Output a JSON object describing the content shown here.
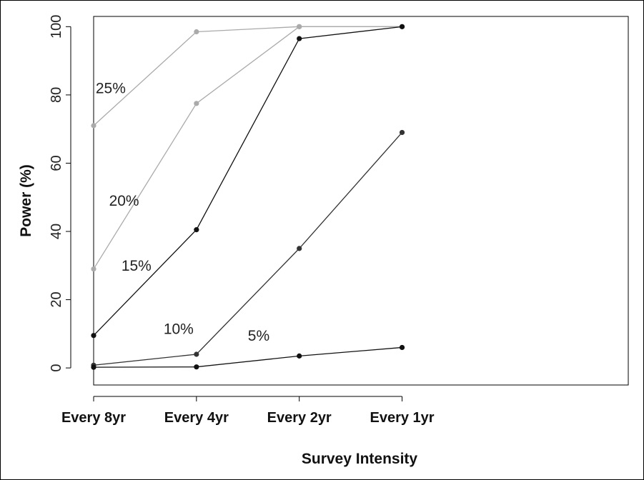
{
  "chart_data": {
    "type": "line",
    "xlabel": "Survey Intensity",
    "ylabel": "Power (%)",
    "categories": [
      "Every 8yr",
      "Every 4yr",
      "Every 2yr",
      "Every 1yr"
    ],
    "xlim": [
      1,
      6.2
    ],
    "ylim": [
      -5,
      103
    ],
    "yticks": [
      0,
      20,
      40,
      60,
      80,
      100
    ],
    "series": [
      {
        "name": "25%",
        "color": "#aaaaaa",
        "values": [
          71,
          98.5,
          100,
          100
        ]
      },
      {
        "name": "20%",
        "color": "#aaaaaa",
        "values": [
          29,
          77.5,
          100,
          100
        ]
      },
      {
        "name": "15%",
        "color": "#111111",
        "values": [
          9.5,
          40.5,
          96.5,
          100
        ]
      },
      {
        "name": "10%",
        "color": "#333333",
        "values": [
          0.8,
          4,
          35,
          69
        ]
      },
      {
        "name": "5%",
        "color": "#111111",
        "values": [
          0.2,
          0.3,
          3.5,
          6
        ]
      }
    ],
    "label_positions": [
      {
        "series": "25%",
        "x": 1.02,
        "y": 80.5
      },
      {
        "series": "20%",
        "x": 1.15,
        "y": 47.5
      },
      {
        "series": "15%",
        "x": 1.27,
        "y": 28.5
      },
      {
        "series": "10%",
        "x": 1.68,
        "y": 10
      },
      {
        "series": "5%",
        "x": 2.5,
        "y": 8
      }
    ]
  }
}
